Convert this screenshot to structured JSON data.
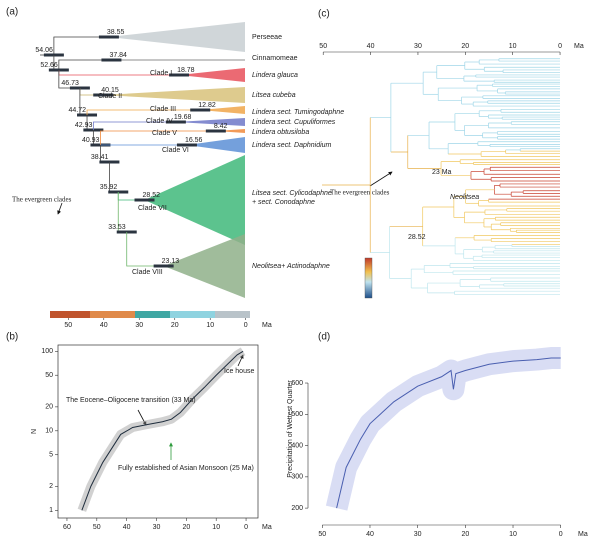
{
  "figure": {
    "panel_a": {
      "label": "(a)",
      "node_ages": [
        38.55,
        37.84,
        54.06,
        52.66,
        18.78,
        46.73,
        40.15,
        44.72,
        12.82,
        42.93,
        19.68,
        40.93,
        8.42,
        16.56,
        38.41,
        35.92,
        28.52,
        33.53,
        23.13
      ],
      "clades": [
        "Clade I",
        "Clade II",
        "Clade III",
        "Clade IV",
        "Clade V",
        "Clade VI",
        "Clade VII",
        "Clade VIII"
      ],
      "taxa": [
        "Perseeae",
        "Cinnamomeae",
        "Lindera glauca",
        "Litsea cubeba",
        "Lindera sect. Tumingodaphne",
        "Lindera sect. Cupuliformes",
        "Lindera obtusiloba",
        "Lindera sect. Daphnidium",
        [
          "Litsea sect. Cylicodaphne",
          "+ sect. Conodaphne"
        ],
        "Neolitsea+ Actinodaphne"
      ],
      "annotation": "The evergreen clades",
      "xlim": [
        56,
        -6
      ],
      "xticks": [
        50,
        40,
        30,
        20,
        10,
        0
      ],
      "xlabel": "Ma"
    },
    "panel_c": {
      "label": "(c)",
      "annotations": [
        "23 Ma",
        "Neolitsea",
        "The evergreen clades",
        "28.52"
      ],
      "xlim": [
        53,
        -4
      ],
      "xticks": [
        50,
        40,
        30,
        20,
        10,
        0
      ],
      "xlabel": "Ma"
    }
  },
  "chart_data": [
    {
      "type": "line",
      "panel_label": "(b)",
      "ylabel": "N",
      "xlabel": "Ma",
      "log_y": true,
      "x": [
        55,
        52,
        48,
        45,
        42,
        38,
        33,
        28,
        25,
        22,
        18,
        14,
        10,
        6,
        3,
        1
      ],
      "values": [
        1,
        2,
        4,
        6,
        9,
        11,
        12,
        13,
        14,
        17,
        25,
        35,
        50,
        70,
        90,
        100
      ],
      "color": "#1f2d3d",
      "xlim": [
        63,
        -4
      ],
      "xticks": [
        60,
        50,
        40,
        30,
        20,
        10,
        0
      ],
      "ylim": [
        0.8,
        120
      ],
      "yticks": [
        1,
        2,
        5,
        10,
        20,
        50,
        100
      ],
      "annotations": [
        "The Eocene–Oligocene transition (33 Ma)",
        "Fully established of Asian Monsoon (25 Ma)",
        "Ice house"
      ]
    },
    {
      "type": "line",
      "panel_label": "(d)",
      "ylabel": "Precipitation of Wettest Quarter",
      "xlabel": "Ma",
      "x": [
        47,
        45,
        42,
        40,
        35,
        30,
        25,
        23,
        22.5,
        22,
        20,
        15,
        10,
        5,
        2,
        0
      ],
      "values": [
        200,
        330,
        420,
        470,
        540,
        590,
        620,
        640,
        580,
        630,
        640,
        660,
        670,
        675,
        680,
        680
      ],
      "color": "#4a5fb0",
      "xlim": [
        53,
        -3
      ],
      "xticks": [
        50,
        40,
        30,
        20,
        10,
        0
      ],
      "ylim": [
        162,
        744
      ],
      "yticks": [
        200,
        300,
        400,
        500,
        600
      ]
    }
  ]
}
